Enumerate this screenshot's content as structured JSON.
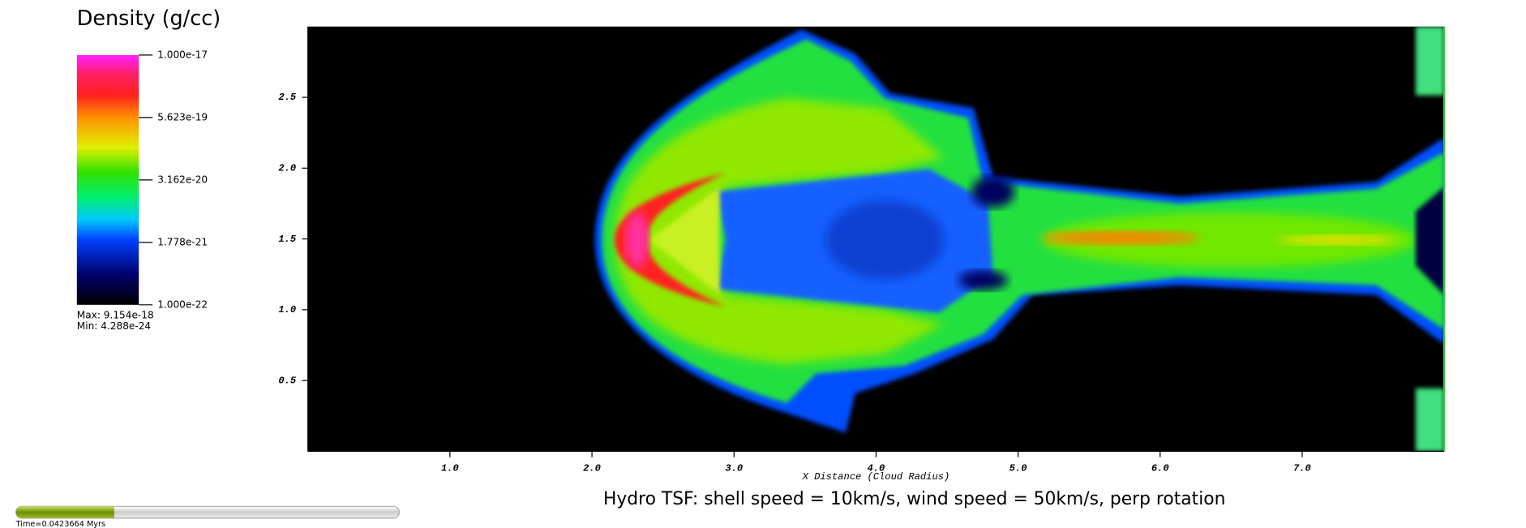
{
  "chart_data": {
    "type": "pseudocolor",
    "title": "Hydro TSF: shell speed = 10km/s, wind speed = 50km/s, perp rotation",
    "xlabel": "X Distance (Cloud Radius)",
    "xlim": [
      0,
      8
    ],
    "ylim": [
      0,
      3
    ],
    "xticks": [
      {
        "value": 1,
        "label": "1.0"
      },
      {
        "value": 2,
        "label": "2.0"
      },
      {
        "value": 3,
        "label": "3.0"
      },
      {
        "value": 4,
        "label": "4.0"
      },
      {
        "value": 5,
        "label": "5.0"
      },
      {
        "value": 6,
        "label": "6.0"
      },
      {
        "value": 7,
        "label": "7.0"
      }
    ],
    "yticks": [
      {
        "value": 0.5,
        "label": "0.5"
      },
      {
        "value": 1,
        "label": "1.0"
      },
      {
        "value": 1.5,
        "label": "1.5"
      },
      {
        "value": 2,
        "label": "2.0"
      },
      {
        "value": 2.5,
        "label": "2.5"
      }
    ],
    "colorbar": {
      "title": "Density (g/cc)",
      "scale": "log",
      "lim": [
        1e-22,
        1e-17
      ],
      "ticks": [
        {
          "value": 1e-22,
          "label": "1.000e-22"
        },
        {
          "value": 1.778e-21,
          "label": "1.778e-21"
        },
        {
          "value": 3.162e-20,
          "label": "3.162e-20"
        },
        {
          "value": 5.623e-19,
          "label": "5.623e-19"
        },
        {
          "value": 1e-17,
          "label": "1.000e-17"
        }
      ],
      "max_label": "Max:  9.154e-18",
      "min_label": "Min:  4.288e-24"
    },
    "time_label": "Time=0.0423664 Myrs"
  }
}
